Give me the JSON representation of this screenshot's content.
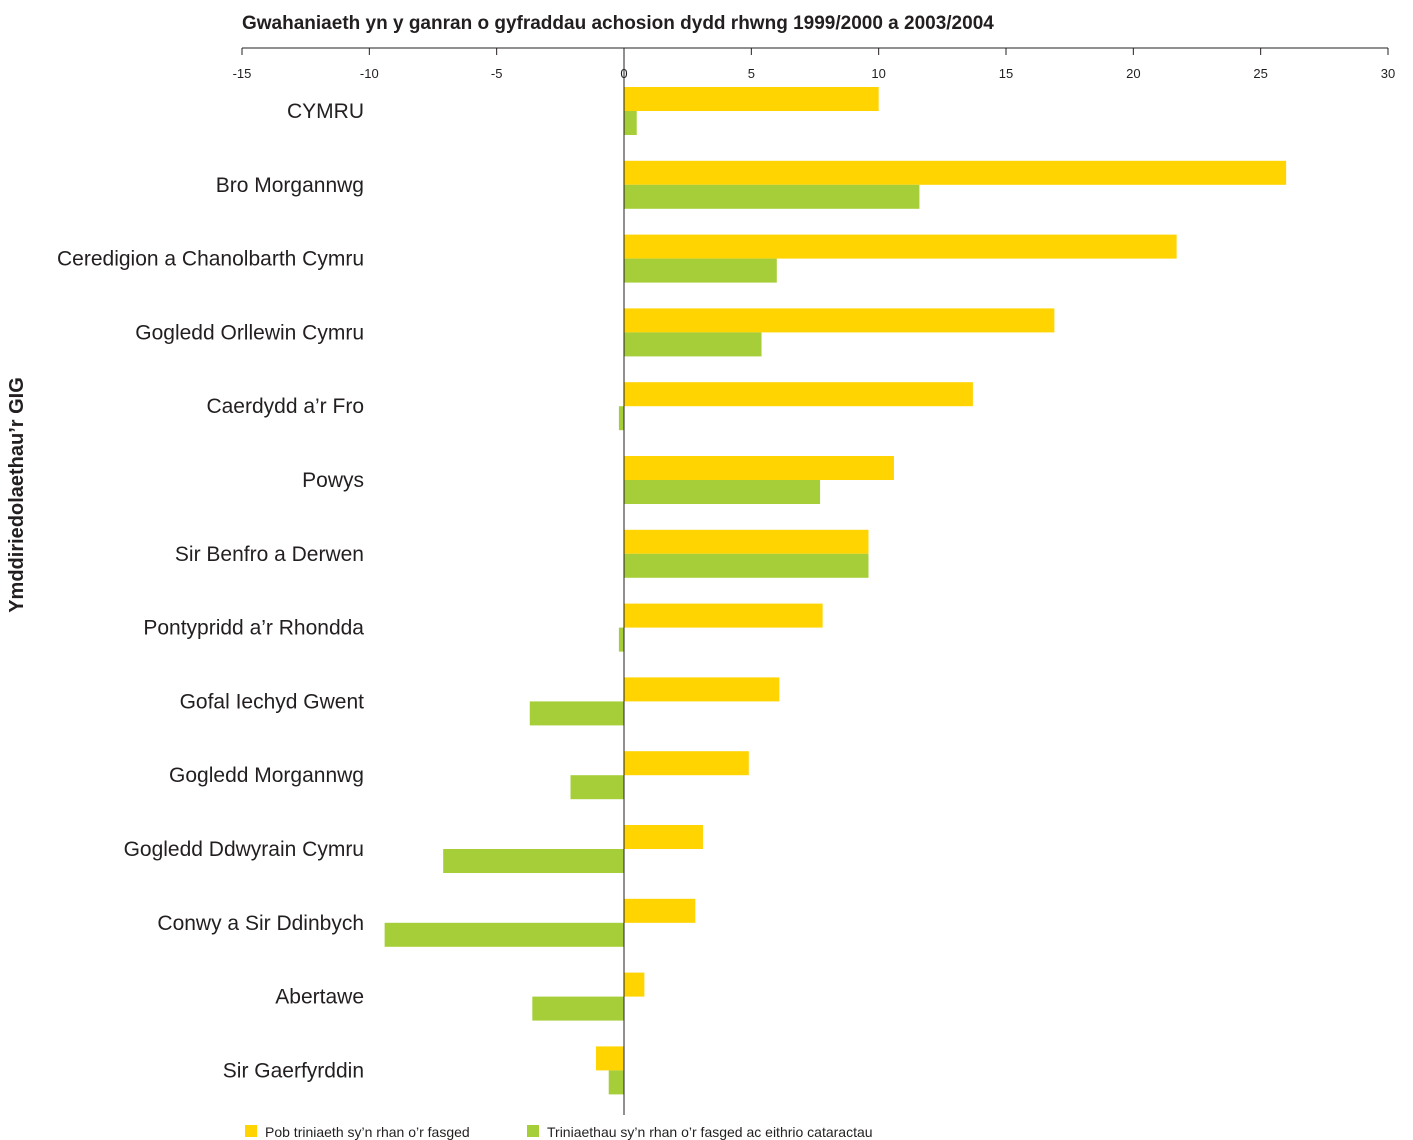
{
  "chart_data": {
    "type": "bar",
    "orientation": "horizontal",
    "title": "Gwahaniaeth yn y ganran o gyfraddau achosion dydd rhwng 1999/2000 a 2003/2004",
    "xlabel": "",
    "ylabel": "Ymddiriedolaethau’r GIG",
    "xlim": [
      -15,
      30
    ],
    "xticks": [
      -15,
      -10,
      -5,
      0,
      5,
      10,
      15,
      20,
      25,
      30
    ],
    "axis_position": "top",
    "grid": false,
    "legend_position": "bottom-left",
    "categories": [
      "CYMRU",
      "Bro Morgannwg",
      "Ceredigion a Chanolbarth Cymru",
      "Gogledd Orllewin Cymru",
      "Caerdydd a’r Fro",
      "Powys",
      "Sir Benfro a Derwen",
      "Pontypridd a’r Rhondda",
      "Gofal Iechyd Gwent",
      "Gogledd Morgannwg",
      "Gogledd Ddwyrain Cymru",
      "Conwy a Sir Ddinbych",
      "Abertawe",
      "Sir Gaerfyrddin"
    ],
    "series": [
      {
        "name": "Pob triniaeth sy’n rhan o’r fasged",
        "color": "#ffd400",
        "values": [
          10.0,
          26.0,
          21.7,
          16.9,
          13.7,
          10.6,
          9.6,
          7.8,
          6.1,
          4.9,
          3.1,
          2.8,
          0.8,
          -1.1
        ]
      },
      {
        "name": "Triniaethau sy’n rhan o’r fasged ac eithrio cataractau",
        "color": "#a6ce39",
        "values": [
          0.5,
          11.6,
          6.0,
          5.4,
          -0.2,
          7.7,
          9.6,
          -0.2,
          -3.7,
          -2.1,
          -7.1,
          -9.4,
          -3.6,
          -0.6
        ]
      }
    ]
  }
}
